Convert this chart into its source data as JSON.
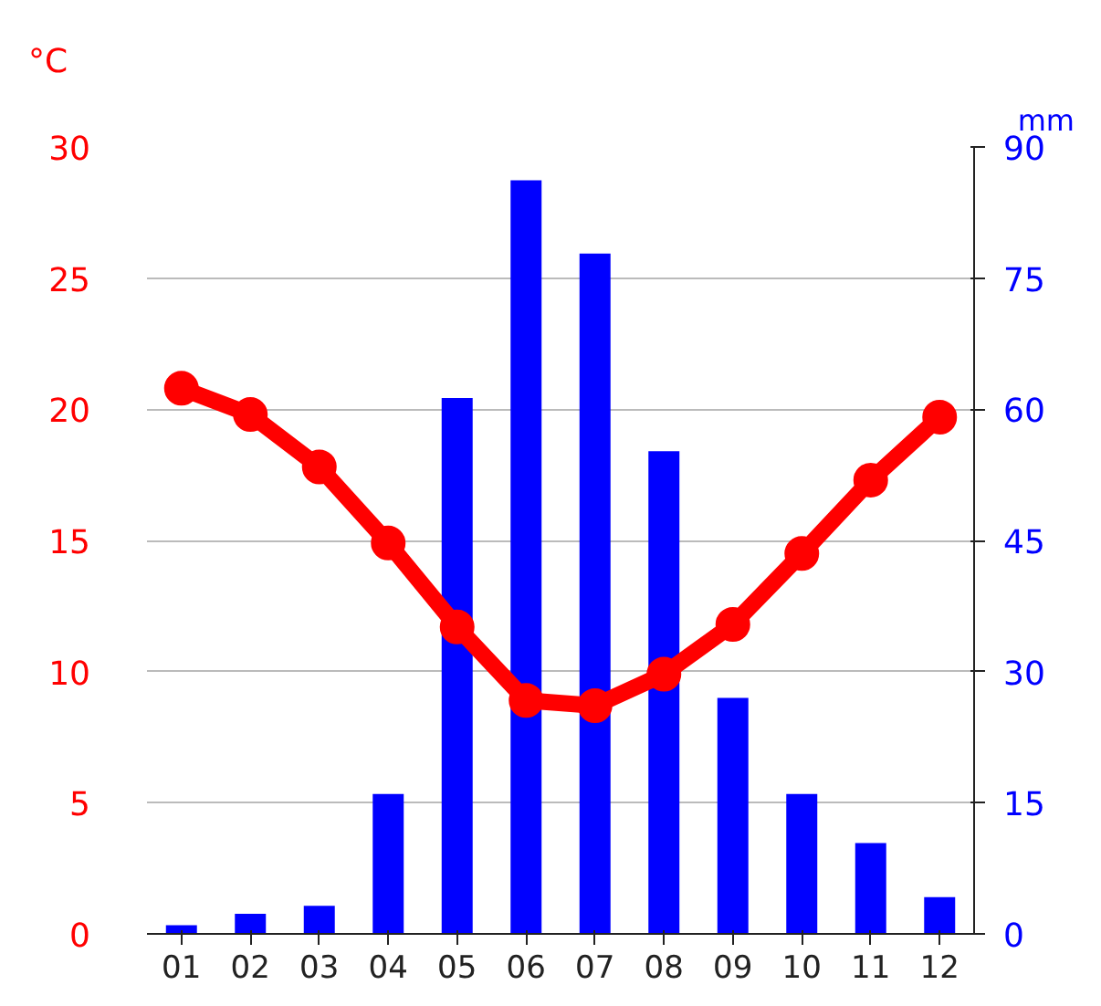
{
  "chart_data": {
    "type": "bar",
    "ylabel": "°C",
    "y2label": "mm",
    "categories": [
      "01",
      "02",
      "03",
      "04",
      "05",
      "06",
      "07",
      "08",
      "09",
      "10",
      "11",
      "12"
    ],
    "series": [
      {
        "axis": "y2",
        "color": "#0000ff",
        "values": [
          1,
          2.3,
          3.2,
          16,
          61.3,
          86.2,
          77.8,
          55.2,
          27,
          16,
          10.4,
          4.2
        ]
      },
      {
        "type": "line",
        "axis": "y",
        "color": "#ff0000",
        "marker": "circle",
        "values": [
          20.8,
          19.8,
          17.8,
          14.9,
          11.7,
          8.9,
          8.7,
          9.9,
          11.8,
          14.5,
          17.3,
          19.7
        ]
      }
    ],
    "ylim": [
      0,
      30
    ],
    "yticks": [
      0,
      5,
      10,
      15,
      20,
      25,
      30
    ],
    "y2lim": [
      0,
      90
    ],
    "y2ticks": [
      0,
      15,
      30,
      45,
      60,
      75,
      90
    ],
    "grid": "y"
  }
}
